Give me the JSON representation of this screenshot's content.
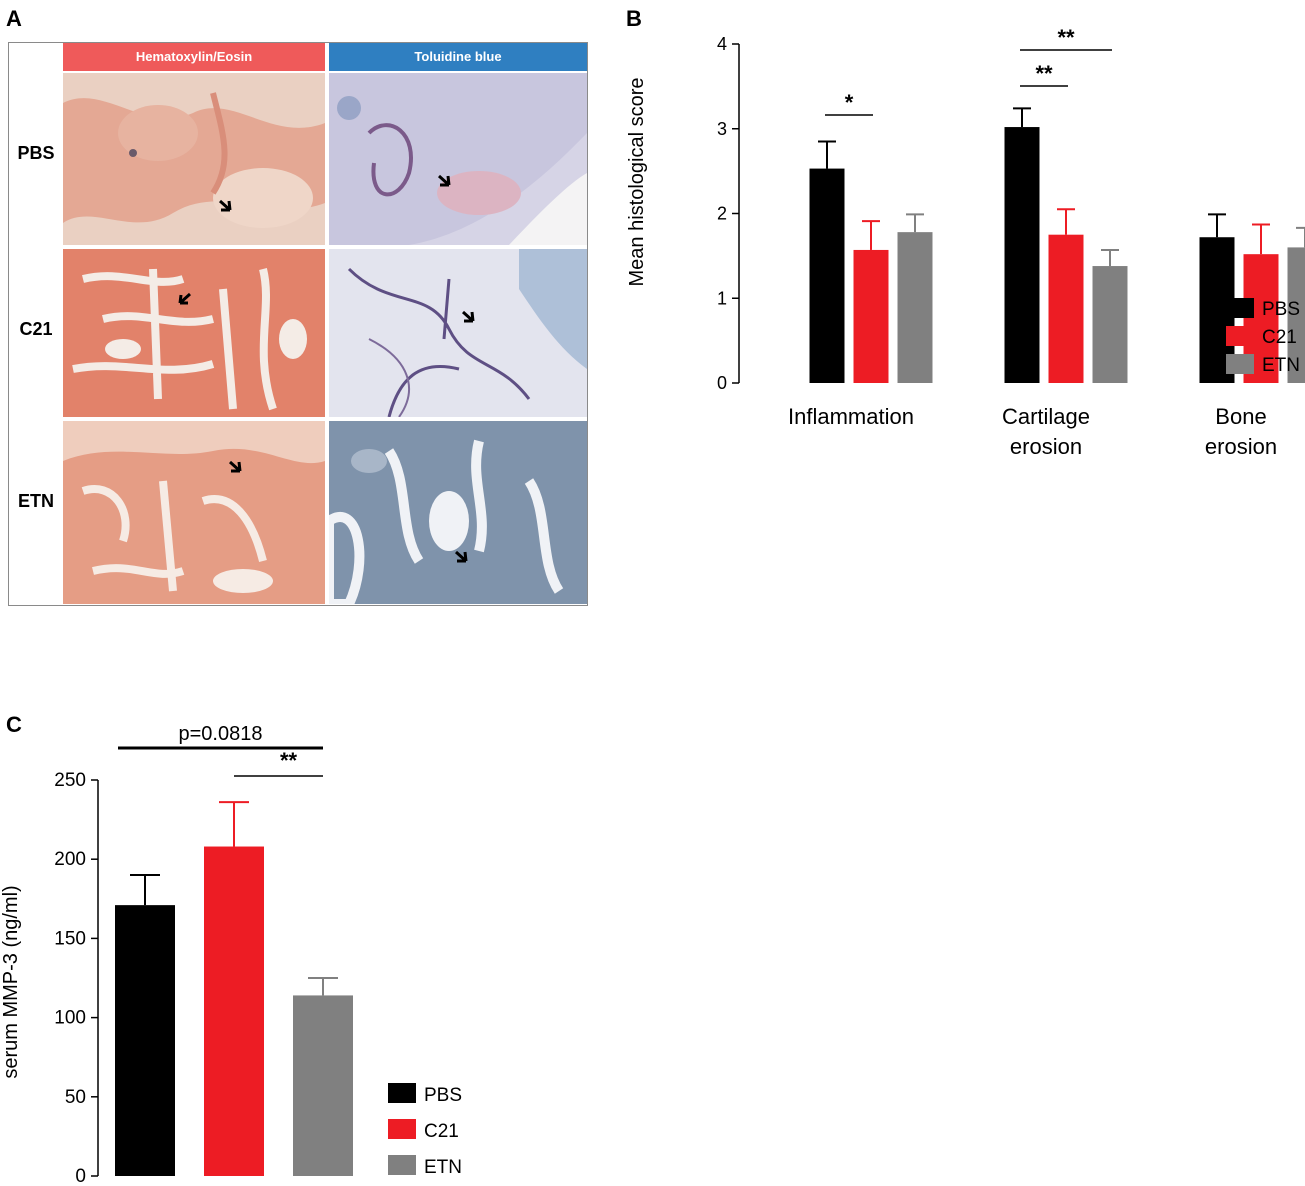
{
  "panel_a": {
    "letter": "A",
    "columns": [
      {
        "label": "Hematoxylin/Eosin",
        "header_color": "#ef5a5a"
      },
      {
        "label": "Toluidine blue",
        "header_color": "#2f7fc1"
      }
    ],
    "rows": [
      "PBS",
      "C21",
      "ETN"
    ]
  },
  "colors": {
    "PBS": "#000000",
    "C21": "#ed1c24",
    "ETN": "#808080",
    "he_stain": "#e8907c",
    "tb_stain": "#c9cde4"
  },
  "chart_data": [
    {
      "panel": "B",
      "type": "bar",
      "categories": [
        "Inflammation",
        "Cartilage erosion",
        "Bone erosion"
      ],
      "category_lines": [
        [
          "Inflammation"
        ],
        [
          "Cartilage",
          "erosion"
        ],
        [
          "Bone",
          "erosion"
        ]
      ],
      "series": [
        {
          "name": "PBS",
          "values": [
            2.53,
            3.02,
            1.72
          ],
          "errors": [
            0.32,
            0.22,
            0.27
          ],
          "color": "#000000"
        },
        {
          "name": "C21",
          "values": [
            1.57,
            1.75,
            1.52
          ],
          "errors": [
            0.34,
            0.3,
            0.35
          ],
          "color": "#ed1c24"
        },
        {
          "name": "ETN",
          "values": [
            1.78,
            1.38,
            1.6
          ],
          "errors": [
            0.21,
            0.19,
            0.23
          ],
          "color": "#808080"
        }
      ],
      "ylabel": "Mean histological score",
      "ylim": [
        0,
        4
      ],
      "yticks": [
        "0",
        "1",
        "2",
        "3",
        "4"
      ],
      "significance": [
        {
          "label": "*",
          "group": 0,
          "from": 0,
          "to": 1,
          "level": 0
        },
        {
          "label": "**",
          "group": 1,
          "from": 0,
          "to": 1,
          "level": 0
        },
        {
          "label": "**",
          "group": 1,
          "from": 0,
          "to": 2,
          "level": 1
        }
      ],
      "legend": "right"
    },
    {
      "panel": "C",
      "type": "bar",
      "categories": [
        "PBS",
        "C21",
        "ETN"
      ],
      "values": [
        171,
        208,
        114
      ],
      "errors": [
        19,
        28,
        11
      ],
      "colors": [
        "#000000",
        "#ed1c24",
        "#808080"
      ],
      "ylabel": "serum MMP-3  (ng/ml)",
      "ylim": [
        0,
        250
      ],
      "yticks": [
        "0",
        "50",
        "100",
        "150",
        "200",
        "250"
      ],
      "significance": [
        {
          "label": "p=0.0818",
          "from": 0,
          "to": 2,
          "level": 1,
          "bold_line": true
        },
        {
          "label": "**",
          "from": 1,
          "to": 2,
          "level": 0
        }
      ],
      "legend_entries": [
        "PBS",
        "C21",
        "ETN"
      ],
      "legend": "lower-right"
    }
  ]
}
